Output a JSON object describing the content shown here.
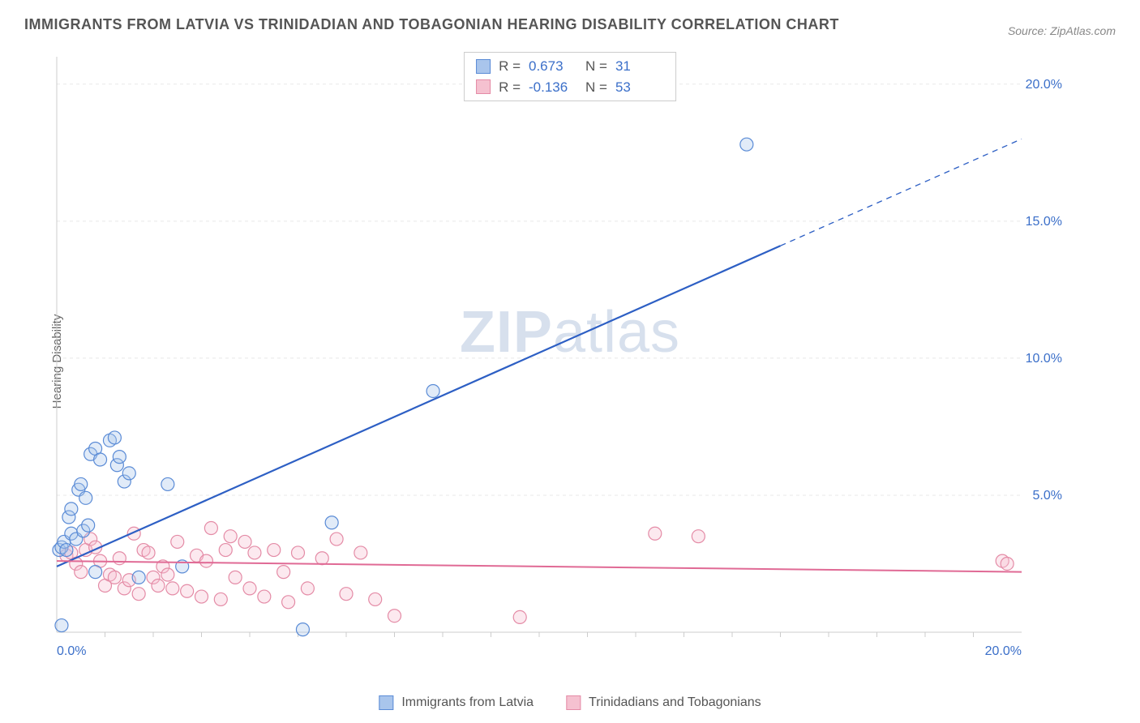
{
  "title": "IMMIGRANTS FROM LATVIA VS TRINIDADIAN AND TOBAGONIAN HEARING DISABILITY CORRELATION CHART",
  "source": "Source: ZipAtlas.com",
  "ylabel": "Hearing Disability",
  "watermark": {
    "zip": "ZIP",
    "atlas": "atlas"
  },
  "chart": {
    "type": "scatter",
    "xlim": [
      0,
      20
    ],
    "ylim": [
      0,
      21
    ],
    "yticks": [
      5,
      10,
      15,
      20
    ],
    "ytick_labels": [
      "5.0%",
      "10.0%",
      "15.0%",
      "20.0%"
    ],
    "xticks": [
      0,
      20
    ],
    "xtick_labels": [
      "0.0%",
      "20.0%"
    ],
    "xtick_minor": [
      1,
      2,
      3,
      4,
      5,
      6,
      7,
      8,
      9,
      10,
      11,
      12,
      13,
      14,
      15,
      16,
      17,
      18,
      19
    ],
    "background_color": "#ffffff",
    "grid_color": "#e8e8e8",
    "axis_color": "#cccccc",
    "marker_radius": 8,
    "marker_stroke_width": 1.2,
    "marker_fill_opacity": 0.35,
    "series": [
      {
        "name": "Immigrants from Latvia",
        "color_stroke": "#5a8bd6",
        "color_fill": "#a9c5ec",
        "R": "0.673",
        "N": "31",
        "trend": {
          "slope": 0.78,
          "intercept": 2.4,
          "solid_end_x": 15.0,
          "color": "#2d5fc4",
          "width": 2.2
        },
        "points": [
          [
            0.05,
            3.0
          ],
          [
            0.1,
            3.1
          ],
          [
            0.15,
            3.3
          ],
          [
            0.2,
            3.0
          ],
          [
            0.25,
            4.2
          ],
          [
            0.3,
            4.5
          ],
          [
            0.45,
            5.2
          ],
          [
            0.5,
            5.4
          ],
          [
            0.6,
            4.9
          ],
          [
            0.7,
            6.5
          ],
          [
            0.8,
            6.7
          ],
          [
            0.9,
            6.3
          ],
          [
            1.1,
            7.0
          ],
          [
            1.2,
            7.1
          ],
          [
            1.25,
            6.1
          ],
          [
            1.3,
            6.4
          ],
          [
            1.4,
            5.5
          ],
          [
            1.5,
            5.8
          ],
          [
            0.1,
            0.25
          ],
          [
            0.8,
            2.2
          ],
          [
            1.7,
            2.0
          ],
          [
            2.3,
            5.4
          ],
          [
            2.6,
            2.4
          ],
          [
            5.1,
            0.1
          ],
          [
            5.7,
            4.0
          ],
          [
            7.8,
            8.8
          ],
          [
            14.3,
            17.8
          ],
          [
            0.3,
            3.6
          ],
          [
            0.4,
            3.4
          ],
          [
            0.55,
            3.7
          ],
          [
            0.65,
            3.9
          ]
        ]
      },
      {
        "name": "Trinidadians and Tobagonians",
        "color_stroke": "#e48ba6",
        "color_fill": "#f5c1d0",
        "R": "-0.136",
        "N": "53",
        "trend": {
          "slope": -0.02,
          "intercept": 2.6,
          "solid_end_x": 20.0,
          "color": "#e06a95",
          "width": 2.0
        },
        "points": [
          [
            0.2,
            2.8
          ],
          [
            0.3,
            2.9
          ],
          [
            0.4,
            2.5
          ],
          [
            0.5,
            2.2
          ],
          [
            0.6,
            3.0
          ],
          [
            0.7,
            3.4
          ],
          [
            0.8,
            3.1
          ],
          [
            0.9,
            2.6
          ],
          [
            1.0,
            1.7
          ],
          [
            1.1,
            2.1
          ],
          [
            1.2,
            2.0
          ],
          [
            1.3,
            2.7
          ],
          [
            1.4,
            1.6
          ],
          [
            1.5,
            1.9
          ],
          [
            1.6,
            3.6
          ],
          [
            1.7,
            1.4
          ],
          [
            1.8,
            3.0
          ],
          [
            1.9,
            2.9
          ],
          [
            2.0,
            2.0
          ],
          [
            2.1,
            1.7
          ],
          [
            2.2,
            2.4
          ],
          [
            2.3,
            2.1
          ],
          [
            2.4,
            1.6
          ],
          [
            2.5,
            3.3
          ],
          [
            2.7,
            1.5
          ],
          [
            2.9,
            2.8
          ],
          [
            3.0,
            1.3
          ],
          [
            3.1,
            2.6
          ],
          [
            3.2,
            3.8
          ],
          [
            3.4,
            1.2
          ],
          [
            3.5,
            3.0
          ],
          [
            3.6,
            3.5
          ],
          [
            3.7,
            2.0
          ],
          [
            3.9,
            3.3
          ],
          [
            4.0,
            1.6
          ],
          [
            4.1,
            2.9
          ],
          [
            4.3,
            1.3
          ],
          [
            4.5,
            3.0
          ],
          [
            4.7,
            2.2
          ],
          [
            4.8,
            1.1
          ],
          [
            5.0,
            2.9
          ],
          [
            5.2,
            1.6
          ],
          [
            5.5,
            2.7
          ],
          [
            5.8,
            3.4
          ],
          [
            6.0,
            1.4
          ],
          [
            6.3,
            2.9
          ],
          [
            6.6,
            1.2
          ],
          [
            7.0,
            0.6
          ],
          [
            9.6,
            0.55
          ],
          [
            12.4,
            3.6
          ],
          [
            13.3,
            3.5
          ],
          [
            19.6,
            2.6
          ],
          [
            19.7,
            2.5
          ]
        ]
      }
    ]
  },
  "legend_top": {
    "r_label": "R =",
    "n_label": "N ="
  },
  "legend_bottom": {
    "items": [
      "Immigrants from Latvia",
      "Trinidadians and Tobagonians"
    ]
  }
}
